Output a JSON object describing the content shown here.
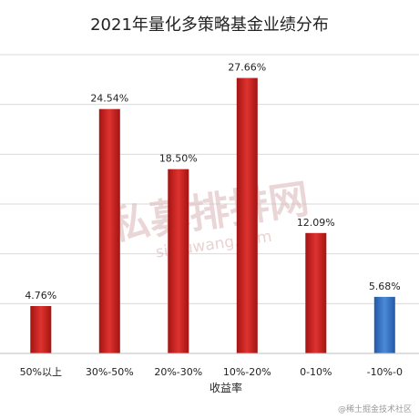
{
  "chart_data": {
    "type": "bar",
    "title": "2021年量化多策略基金业绩分布",
    "xlabel": "收益率",
    "ylabel": "",
    "categories": [
      "50%以上",
      "30%-50%",
      "20%-30%",
      "10%-20%",
      "0-10%",
      "-10%-0"
    ],
    "values": [
      4.76,
      24.54,
      18.5,
      27.66,
      12.09,
      5.68
    ],
    "value_labels": [
      "4.76%",
      "24.54%",
      "18.50%",
      "27.66%",
      "12.09%",
      "5.68%"
    ],
    "bar_colors": [
      "#c8201e",
      "#c8201e",
      "#c8201e",
      "#c8201e",
      "#c8201e",
      "#2e6cc0"
    ],
    "ylim": [
      0,
      30
    ],
    "grid": true,
    "legend": "none"
  },
  "watermark": {
    "main": "私募排排网",
    "sub": "simuwang.com"
  },
  "credit": "@稀土掘金技术社区",
  "colors": {
    "red_dark": "#a31412",
    "red_light": "#de3330",
    "blue_dark": "#2459a6",
    "blue_light": "#4b8ad8",
    "grid": "#d9d9d9",
    "axis": "#bfbfbf"
  }
}
